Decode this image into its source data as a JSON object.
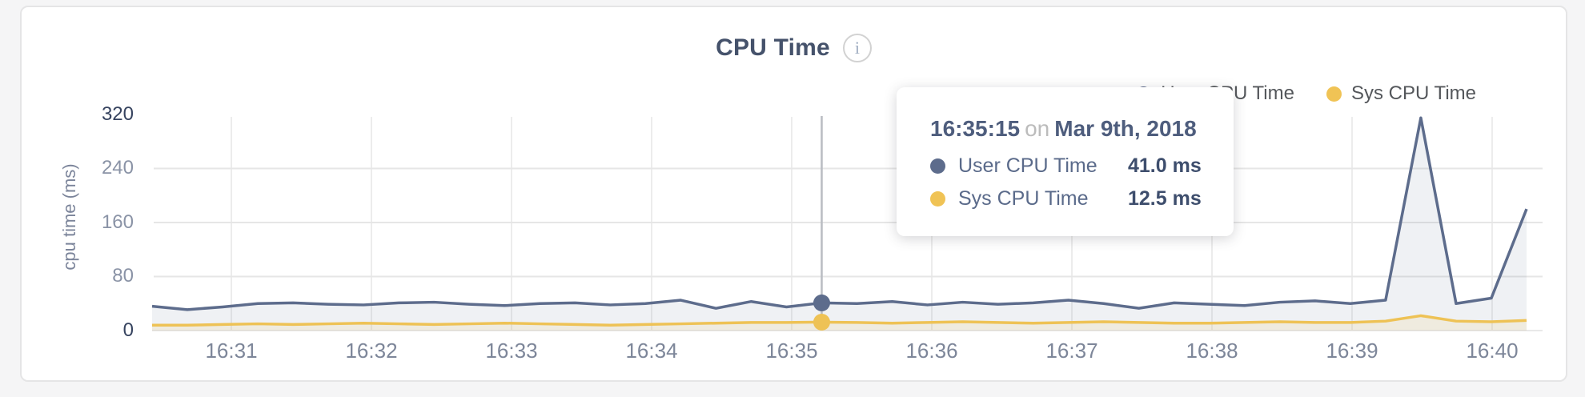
{
  "chart": {
    "title": "CPU Time",
    "info_icon_glyph": "i",
    "ylabel": "cpu time (ms)",
    "y_tick_labels": [
      "320",
      "240",
      "160",
      "80",
      "0"
    ],
    "x_ticks": [
      "16:31",
      "16:32",
      "16:33",
      "16:34",
      "16:35",
      "16:36",
      "16:37",
      "16:38",
      "16:39",
      "16:40"
    ]
  },
  "legend": {
    "items": [
      {
        "label": "User CPU Time",
        "color": "#5d6c8c"
      },
      {
        "label": "Sys CPU Time",
        "color": "#f0c355"
      }
    ]
  },
  "tooltip": {
    "time": "16:35:15",
    "preposition": "on",
    "date": "Mar 9th, 2018",
    "rows": [
      {
        "label": "User CPU Time",
        "value": "41.0 ms",
        "color": "#5d6c8c"
      },
      {
        "label": "Sys CPU Time",
        "value": "12.5 ms",
        "color": "#f0c355"
      }
    ]
  },
  "chart_data": {
    "type": "area",
    "title": "CPU Time",
    "xlabel": "",
    "ylabel": "cpu time (ms)",
    "ylim": [
      0,
      320
    ],
    "y_ticks": [
      0,
      80,
      160,
      240,
      320
    ],
    "x_tick_labels": [
      "16:31",
      "16:32",
      "16:33",
      "16:34",
      "16:35",
      "16:36",
      "16:37",
      "16:38",
      "16:39",
      "16:40"
    ],
    "x_start_time": "16:30:30",
    "x_interval_seconds": 15,
    "grid": true,
    "legend_position": "top-right",
    "series": [
      {
        "name": "User CPU Time",
        "color": "#5d6c8c",
        "fill": "rgba(101,115,144,0.10)",
        "values": [
          36,
          31,
          35,
          40,
          41,
          39,
          38,
          41,
          42,
          39,
          37,
          40,
          41,
          38,
          40,
          45,
          33,
          43,
          35,
          41,
          40,
          43,
          38,
          42,
          39,
          41,
          45,
          40,
          33,
          41,
          39,
          37,
          42,
          44,
          40,
          45,
          315,
          40,
          48,
          180
        ]
      },
      {
        "name": "Sys CPU Time",
        "color": "#eec255",
        "fill": "rgba(240,216,150,0.22)",
        "values": [
          8,
          8,
          9,
          10,
          9,
          10,
          11,
          10,
          9,
          10,
          11,
          10,
          9,
          8,
          9,
          10,
          11,
          12,
          12,
          12.5,
          12,
          11,
          12,
          13,
          12,
          11,
          12,
          13,
          12,
          11,
          11,
          12,
          13,
          12,
          12,
          14,
          22,
          14,
          13,
          15
        ]
      }
    ],
    "hover": {
      "index": 19,
      "time": "16:35:15",
      "date": "Mar 9th, 2018",
      "values": {
        "user_ms": 41.0,
        "sys_ms": 12.5
      }
    }
  }
}
